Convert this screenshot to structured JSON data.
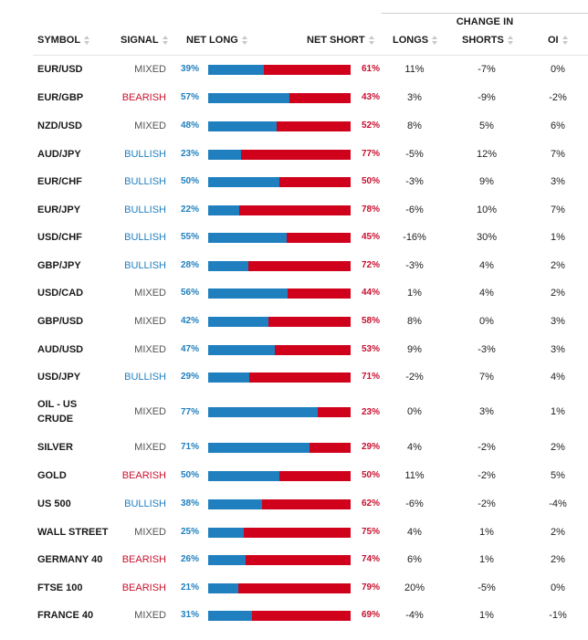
{
  "header": {
    "change_in": "CHANGE IN",
    "symbol": "SYMBOL",
    "signal": "SIGNAL",
    "net_long": "NET LONG",
    "net_short": "NET SHORT",
    "longs": "LONGS",
    "shorts": "SHORTS",
    "oi": "OI"
  },
  "colors": {
    "long_bar": "#1f7fbf",
    "short_bar": "#d0021b",
    "bullish": "#1f7fbf",
    "bearish": "#c8102e",
    "mixed": "#555555"
  },
  "rows": [
    {
      "symbol": "EUR/USD",
      "signal": "MIXED",
      "net_long": "39%",
      "net_short": "61%",
      "longs": "11%",
      "shorts": "-7%",
      "oi": "0%"
    },
    {
      "symbol": "EUR/GBP",
      "signal": "BEARISH",
      "net_long": "57%",
      "net_short": "43%",
      "longs": "3%",
      "shorts": "-9%",
      "oi": "-2%"
    },
    {
      "symbol": "NZD/USD",
      "signal": "MIXED",
      "net_long": "48%",
      "net_short": "52%",
      "longs": "8%",
      "shorts": "5%",
      "oi": "6%"
    },
    {
      "symbol": "AUD/JPY",
      "signal": "BULLISH",
      "net_long": "23%",
      "net_short": "77%",
      "longs": "-5%",
      "shorts": "12%",
      "oi": "7%"
    },
    {
      "symbol": "EUR/CHF",
      "signal": "BULLISH",
      "net_long": "50%",
      "net_short": "50%",
      "longs": "-3%",
      "shorts": "9%",
      "oi": "3%"
    },
    {
      "symbol": "EUR/JPY",
      "signal": "BULLISH",
      "net_long": "22%",
      "net_short": "78%",
      "longs": "-6%",
      "shorts": "10%",
      "oi": "7%"
    },
    {
      "symbol": "USD/CHF",
      "signal": "BULLISH",
      "net_long": "55%",
      "net_short": "45%",
      "longs": "-16%",
      "shorts": "30%",
      "oi": "1%"
    },
    {
      "symbol": "GBP/JPY",
      "signal": "BULLISH",
      "net_long": "28%",
      "net_short": "72%",
      "longs": "-3%",
      "shorts": "4%",
      "oi": "2%"
    },
    {
      "symbol": "USD/CAD",
      "signal": "MIXED",
      "net_long": "56%",
      "net_short": "44%",
      "longs": "1%",
      "shorts": "4%",
      "oi": "2%"
    },
    {
      "symbol": "GBP/USD",
      "signal": "MIXED",
      "net_long": "42%",
      "net_short": "58%",
      "longs": "8%",
      "shorts": "0%",
      "oi": "3%"
    },
    {
      "symbol": "AUD/USD",
      "signal": "MIXED",
      "net_long": "47%",
      "net_short": "53%",
      "longs": "9%",
      "shorts": "-3%",
      "oi": "3%"
    },
    {
      "symbol": "USD/JPY",
      "signal": "BULLISH",
      "net_long": "29%",
      "net_short": "71%",
      "longs": "-2%",
      "shorts": "7%",
      "oi": "4%"
    },
    {
      "symbol": "OIL - US CRUDE",
      "signal": "MIXED",
      "net_long": "77%",
      "net_short": "23%",
      "longs": "0%",
      "shorts": "3%",
      "oi": "1%"
    },
    {
      "symbol": "SILVER",
      "signal": "MIXED",
      "net_long": "71%",
      "net_short": "29%",
      "longs": "4%",
      "shorts": "-2%",
      "oi": "2%"
    },
    {
      "symbol": "GOLD",
      "signal": "BEARISH",
      "net_long": "50%",
      "net_short": "50%",
      "longs": "11%",
      "shorts": "-2%",
      "oi": "5%"
    },
    {
      "symbol": "US 500",
      "signal": "BULLISH",
      "net_long": "38%",
      "net_short": "62%",
      "longs": "-6%",
      "shorts": "-2%",
      "oi": "-4%"
    },
    {
      "symbol": "WALL STREET",
      "signal": "MIXED",
      "net_long": "25%",
      "net_short": "75%",
      "longs": "4%",
      "shorts": "1%",
      "oi": "2%"
    },
    {
      "symbol": "GERMANY 40",
      "signal": "BEARISH",
      "net_long": "26%",
      "net_short": "74%",
      "longs": "6%",
      "shorts": "1%",
      "oi": "2%"
    },
    {
      "symbol": "FTSE 100",
      "signal": "BEARISH",
      "net_long": "21%",
      "net_short": "79%",
      "longs": "20%",
      "shorts": "-5%",
      "oi": "0%"
    },
    {
      "symbol": "FRANCE 40",
      "signal": "MIXED",
      "net_long": "31%",
      "net_short": "69%",
      "longs": "-4%",
      "shorts": "1%",
      "oi": "-1%"
    }
  ]
}
